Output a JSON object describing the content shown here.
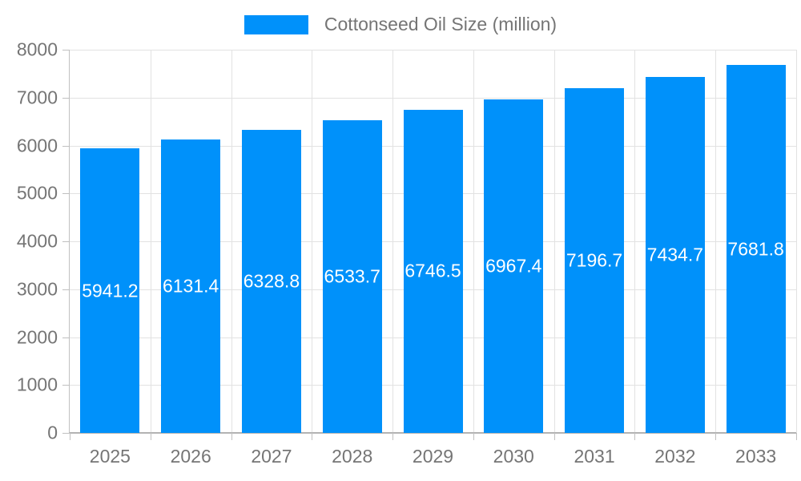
{
  "legend": {
    "label": "Cottonseed Oil Size (million)",
    "swatch_icon": "legend-swatch-rect",
    "swatch_color": "#0091fa"
  },
  "chart_data": {
    "type": "bar",
    "title": "Cottonseed Oil Size (million)",
    "categories": [
      "2025",
      "2026",
      "2027",
      "2028",
      "2029",
      "2030",
      "2031",
      "2032",
      "2033"
    ],
    "values": [
      5941.2,
      6131.4,
      6328.8,
      6533.7,
      6746.5,
      6967.4,
      7196.7,
      7434.7,
      7681.8
    ],
    "value_labels": [
      "5941.2",
      "6131.4",
      "6328.8",
      "6533.7",
      "6746.5",
      "6967.4",
      "7196.7",
      "7434.7",
      "7681.8"
    ],
    "xlabel": "",
    "ylabel": "",
    "ylim": [
      0,
      8000
    ],
    "yticks": [
      0,
      1000,
      2000,
      3000,
      4000,
      5000,
      6000,
      7000,
      8000
    ],
    "grid": true,
    "legend_position": "top-center",
    "bar_color": "#0091fa",
    "bar_label_color": "#ffffff",
    "axis_text_color": "#757575",
    "gridline_color": "#e2e2e2",
    "axis_line_color": "#b3b3b3"
  }
}
